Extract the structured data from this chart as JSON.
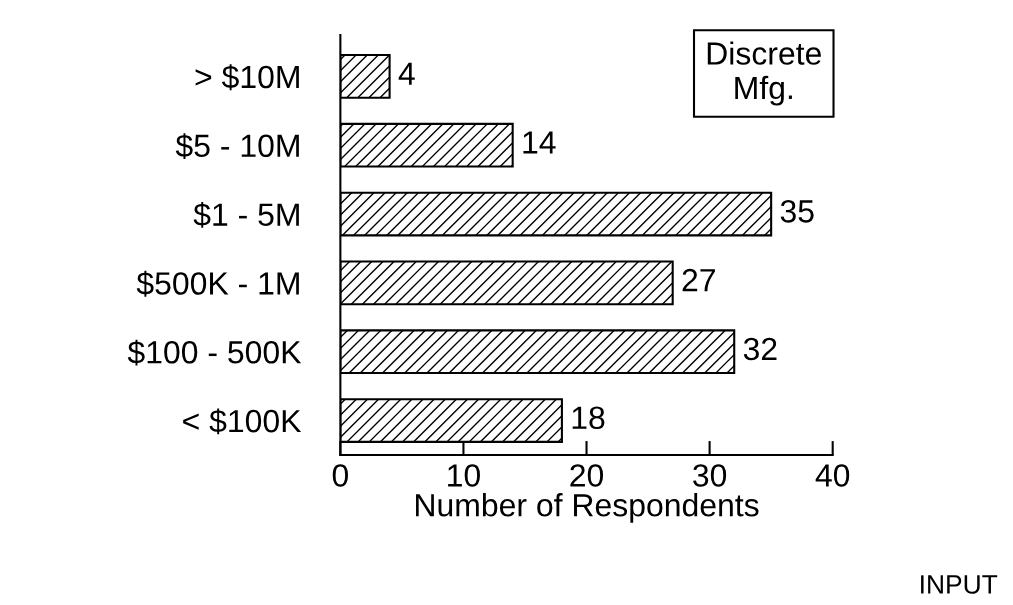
{
  "chart_data": {
    "type": "bar",
    "orientation": "horizontal",
    "title": "Discrete\nMfg.",
    "categories": [
      "> $10M",
      "$5 - 10M",
      "$1 - 5M",
      "$500K - 1M",
      "$100 - 500K",
      "< $100K"
    ],
    "values": [
      4,
      14,
      35,
      27,
      32,
      18
    ],
    "color": "#000000",
    "xlim": [
      0,
      40
    ],
    "xticks": [
      0,
      10,
      20,
      30,
      40
    ],
    "xlabel": "Number of Respondents",
    "data_labels": true,
    "grid": false,
    "annotations": [
      "INPUT"
    ]
  }
}
